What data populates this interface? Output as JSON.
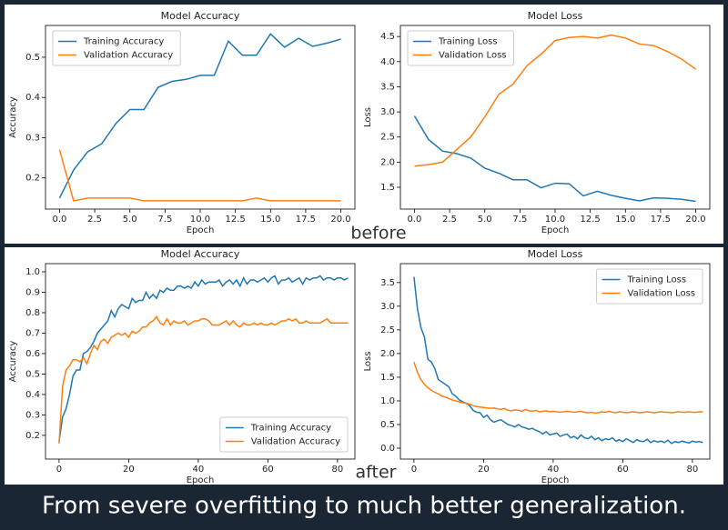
{
  "labels": {
    "before": "before",
    "after": "after",
    "caption": "From severe overfitting to much better generalization."
  },
  "chart_data": [
    {
      "type": "line",
      "title": "Model Accuracy",
      "xlabel": "Epoch",
      "ylabel": "Accuracy",
      "legend": "upper left",
      "x": [
        0,
        1,
        2,
        3,
        4,
        5,
        6,
        7,
        8,
        9,
        10,
        11,
        12,
        13,
        14,
        15,
        16,
        17,
        18,
        19,
        20
      ],
      "series": [
        {
          "name": "Training Accuracy",
          "color": "#1f77b4",
          "values": [
            0.15,
            0.22,
            0.265,
            0.285,
            0.335,
            0.37,
            0.37,
            0.425,
            0.44,
            0.445,
            0.455,
            0.455,
            0.54,
            0.505,
            0.505,
            0.558,
            0.525,
            0.547,
            0.527,
            0.535,
            0.545
          ]
        },
        {
          "name": "Validation Accuracy",
          "color": "#ff7f0e",
          "values": [
            0.27,
            0.143,
            0.15,
            0.15,
            0.15,
            0.15,
            0.143,
            0.143,
            0.143,
            0.143,
            0.143,
            0.143,
            0.143,
            0.143,
            0.15,
            0.143,
            0.143,
            0.143,
            0.143,
            0.143,
            0.143
          ]
        }
      ],
      "xlim": [
        -1,
        21
      ],
      "xticks": [
        {
          "value": 0,
          "label": "0.0"
        },
        2.5,
        {
          "value": 5,
          "label": "5.0"
        },
        7.5,
        {
          "value": 10,
          "label": "10.0"
        },
        12.5,
        {
          "value": 15,
          "label": "15.0"
        },
        17.5,
        {
          "value": 20,
          "label": "20.0"
        }
      ],
      "ylim": [
        0.1225,
        0.579
      ],
      "yticks": [
        0.2,
        0.3,
        0.4,
        0.5
      ]
    },
    {
      "type": "line",
      "title": "Model Loss",
      "xlabel": "Epoch",
      "ylabel": "Loss",
      "legend": "upper left",
      "x": [
        0,
        1,
        2,
        3,
        4,
        5,
        6,
        7,
        8,
        9,
        10,
        11,
        12,
        13,
        14,
        15,
        16,
        17,
        18,
        19,
        20
      ],
      "series": [
        {
          "name": "Training Loss",
          "color": "#1f77b4",
          "values": [
            2.92,
            2.45,
            2.22,
            2.17,
            2.08,
            1.88,
            1.78,
            1.65,
            1.65,
            1.49,
            1.58,
            1.57,
            1.33,
            1.42,
            1.34,
            1.28,
            1.23,
            1.29,
            1.28,
            1.26,
            1.22
          ]
        },
        {
          "name": "Validation Loss",
          "color": "#ff7f0e",
          "values": [
            1.92,
            1.95,
            2.0,
            2.25,
            2.5,
            2.9,
            3.35,
            3.55,
            3.92,
            4.15,
            4.42,
            4.48,
            4.5,
            4.47,
            4.53,
            4.47,
            4.35,
            4.32,
            4.2,
            4.05,
            3.85
          ]
        }
      ],
      "xlim": [
        -1,
        21
      ],
      "xticks": [
        {
          "value": 0,
          "label": "0.0"
        },
        2.5,
        {
          "value": 5,
          "label": "5.0"
        },
        7.5,
        {
          "value": 10,
          "label": "10.0"
        },
        12.5,
        {
          "value": 15,
          "label": "15.0"
        },
        17.5,
        {
          "value": 20,
          "label": "20.0"
        }
      ],
      "ylim": [
        1.066,
        4.72
      ],
      "yticks": [
        1.5,
        {
          "value": 2,
          "label": "2.0"
        },
        2.5,
        {
          "value": 3,
          "label": "3.0"
        },
        3.5,
        {
          "value": 4,
          "label": "4.0"
        },
        4.5
      ]
    },
    {
      "type": "line",
      "title": "Model Accuracy",
      "xlabel": "Epoch",
      "ylabel": "Accuracy",
      "legend": "lower right",
      "x": [
        0,
        1,
        2,
        3,
        4,
        5,
        6,
        7,
        8,
        9,
        10,
        11,
        12,
        13,
        14,
        15,
        16,
        17,
        18,
        19,
        20,
        21,
        22,
        23,
        24,
        25,
        26,
        27,
        28,
        29,
        30,
        31,
        32,
        33,
        34,
        35,
        36,
        37,
        38,
        39,
        40,
        41,
        42,
        43,
        44,
        45,
        46,
        47,
        48,
        49,
        50,
        51,
        52,
        53,
        54,
        55,
        56,
        57,
        58,
        59,
        60,
        61,
        62,
        63,
        64,
        65,
        66,
        67,
        68,
        69,
        70,
        71,
        72,
        73,
        74,
        75,
        76,
        77,
        78,
        79,
        80,
        81,
        82,
        83
      ],
      "series": [
        {
          "name": "Training Accuracy",
          "color": "#1f77b4",
          "values": [
            0.17,
            0.29,
            0.33,
            0.4,
            0.49,
            0.52,
            0.52,
            0.6,
            0.61,
            0.63,
            0.66,
            0.7,
            0.72,
            0.74,
            0.76,
            0.81,
            0.78,
            0.82,
            0.84,
            0.83,
            0.82,
            0.87,
            0.85,
            0.86,
            0.86,
            0.9,
            0.87,
            0.89,
            0.87,
            0.91,
            0.9,
            0.92,
            0.91,
            0.91,
            0.93,
            0.93,
            0.92,
            0.93,
            0.92,
            0.95,
            0.93,
            0.96,
            0.94,
            0.95,
            0.95,
            0.95,
            0.96,
            0.93,
            0.95,
            0.96,
            0.94,
            0.96,
            0.93,
            0.97,
            0.94,
            0.96,
            0.96,
            0.95,
            0.96,
            0.97,
            0.95,
            0.97,
            0.98,
            0.94,
            0.96,
            0.96,
            0.97,
            0.95,
            0.96,
            0.97,
            0.94,
            0.97,
            0.96,
            0.97,
            0.97,
            0.98,
            0.96,
            0.97,
            0.97,
            0.96,
            0.97,
            0.97,
            0.96,
            0.97
          ]
        },
        {
          "name": "Validation Accuracy",
          "color": "#ff7f0e",
          "values": [
            0.16,
            0.44,
            0.52,
            0.54,
            0.57,
            0.57,
            0.56,
            0.58,
            0.55,
            0.6,
            0.64,
            0.62,
            0.66,
            0.67,
            0.65,
            0.68,
            0.69,
            0.7,
            0.69,
            0.7,
            0.68,
            0.71,
            0.7,
            0.71,
            0.73,
            0.73,
            0.75,
            0.76,
            0.78,
            0.75,
            0.74,
            0.77,
            0.74,
            0.76,
            0.75,
            0.75,
            0.76,
            0.74,
            0.75,
            0.76,
            0.76,
            0.77,
            0.77,
            0.76,
            0.74,
            0.74,
            0.74,
            0.75,
            0.76,
            0.74,
            0.76,
            0.74,
            0.73,
            0.75,
            0.74,
            0.74,
            0.75,
            0.74,
            0.75,
            0.74,
            0.74,
            0.75,
            0.74,
            0.75,
            0.76,
            0.76,
            0.77,
            0.76,
            0.77,
            0.75,
            0.75,
            0.76,
            0.75,
            0.75,
            0.75,
            0.75,
            0.76,
            0.77,
            0.75,
            0.75,
            0.75,
            0.75,
            0.75,
            0.75
          ]
        }
      ],
      "xlim": [
        -3.9,
        85
      ],
      "xticks": [
        0,
        20,
        40,
        60,
        80
      ],
      "ylim": [
        0.084,
        1.04
      ],
      "yticks": [
        0.2,
        0.3,
        0.4,
        0.5,
        0.6,
        0.7,
        0.8,
        0.9,
        {
          "value": 1,
          "label": "1.0"
        }
      ]
    },
    {
      "type": "line",
      "title": "Model Loss",
      "xlabel": "Epoch",
      "ylabel": "Loss",
      "legend": "upper right",
      "x": [
        0,
        1,
        2,
        3,
        4,
        5,
        6,
        7,
        8,
        9,
        10,
        11,
        12,
        13,
        14,
        15,
        16,
        17,
        18,
        19,
        20,
        21,
        22,
        23,
        24,
        25,
        26,
        27,
        28,
        29,
        30,
        31,
        32,
        33,
        34,
        35,
        36,
        37,
        38,
        39,
        40,
        41,
        42,
        43,
        44,
        45,
        46,
        47,
        48,
        49,
        50,
        51,
        52,
        53,
        54,
        55,
        56,
        57,
        58,
        59,
        60,
        61,
        62,
        63,
        64,
        65,
        66,
        67,
        68,
        69,
        70,
        71,
        72,
        73,
        74,
        75,
        76,
        77,
        78,
        79,
        80,
        81,
        82,
        83
      ],
      "series": [
        {
          "name": "Training Loss",
          "color": "#1f77b4",
          "values": [
            3.62,
            2.95,
            2.55,
            2.35,
            1.88,
            1.82,
            1.68,
            1.45,
            1.4,
            1.35,
            1.3,
            1.15,
            1.1,
            1.02,
            0.98,
            0.95,
            0.9,
            0.8,
            0.76,
            0.75,
            0.65,
            0.7,
            0.6,
            0.55,
            0.58,
            0.6,
            0.55,
            0.5,
            0.48,
            0.45,
            0.5,
            0.45,
            0.43,
            0.4,
            0.42,
            0.38,
            0.35,
            0.3,
            0.35,
            0.28,
            0.3,
            0.32,
            0.25,
            0.28,
            0.3,
            0.22,
            0.25,
            0.2,
            0.28,
            0.22,
            0.2,
            0.25,
            0.18,
            0.22,
            0.16,
            0.2,
            0.18,
            0.22,
            0.15,
            0.18,
            0.14,
            0.2,
            0.16,
            0.12,
            0.18,
            0.15,
            0.14,
            0.19,
            0.12,
            0.16,
            0.13,
            0.15,
            0.12,
            0.17,
            0.1,
            0.14,
            0.12,
            0.15,
            0.13,
            0.11,
            0.15,
            0.13,
            0.14,
            0.12
          ]
        },
        {
          "name": "Validation Loss",
          "color": "#ff7f0e",
          "values": [
            1.82,
            1.6,
            1.45,
            1.35,
            1.28,
            1.22,
            1.18,
            1.15,
            1.1,
            1.08,
            1.05,
            1.02,
            1.0,
            0.98,
            0.96,
            0.95,
            0.93,
            0.9,
            0.88,
            0.87,
            0.86,
            0.85,
            0.84,
            0.85,
            0.83,
            0.82,
            0.84,
            0.8,
            0.79,
            0.81,
            0.8,
            0.78,
            0.82,
            0.79,
            0.78,
            0.8,
            0.77,
            0.78,
            0.79,
            0.77,
            0.78,
            0.77,
            0.76,
            0.77,
            0.78,
            0.77,
            0.76,
            0.77,
            0.78,
            0.76,
            0.75,
            0.76,
            0.74,
            0.75,
            0.77,
            0.76,
            0.78,
            0.76,
            0.75,
            0.77,
            0.76,
            0.75,
            0.76,
            0.77,
            0.76,
            0.75,
            0.76,
            0.77,
            0.76,
            0.75,
            0.76,
            0.77,
            0.76,
            0.76,
            0.75,
            0.76,
            0.77,
            0.76,
            0.76,
            0.77,
            0.76,
            0.76,
            0.77,
            0.77
          ]
        }
      ],
      "xlim": [
        -3.9,
        85
      ],
      "xticks": [
        0,
        20,
        40,
        60,
        80
      ],
      "ylim": [
        -0.23,
        3.9
      ],
      "yticks": [
        {
          "value": 0,
          "label": "0.0"
        },
        0.5,
        {
          "value": 1,
          "label": "1.0"
        },
        1.5,
        {
          "value": 2,
          "label": "2.0"
        },
        2.5,
        {
          "value": 3,
          "label": "3.0"
        },
        3.5
      ]
    }
  ]
}
